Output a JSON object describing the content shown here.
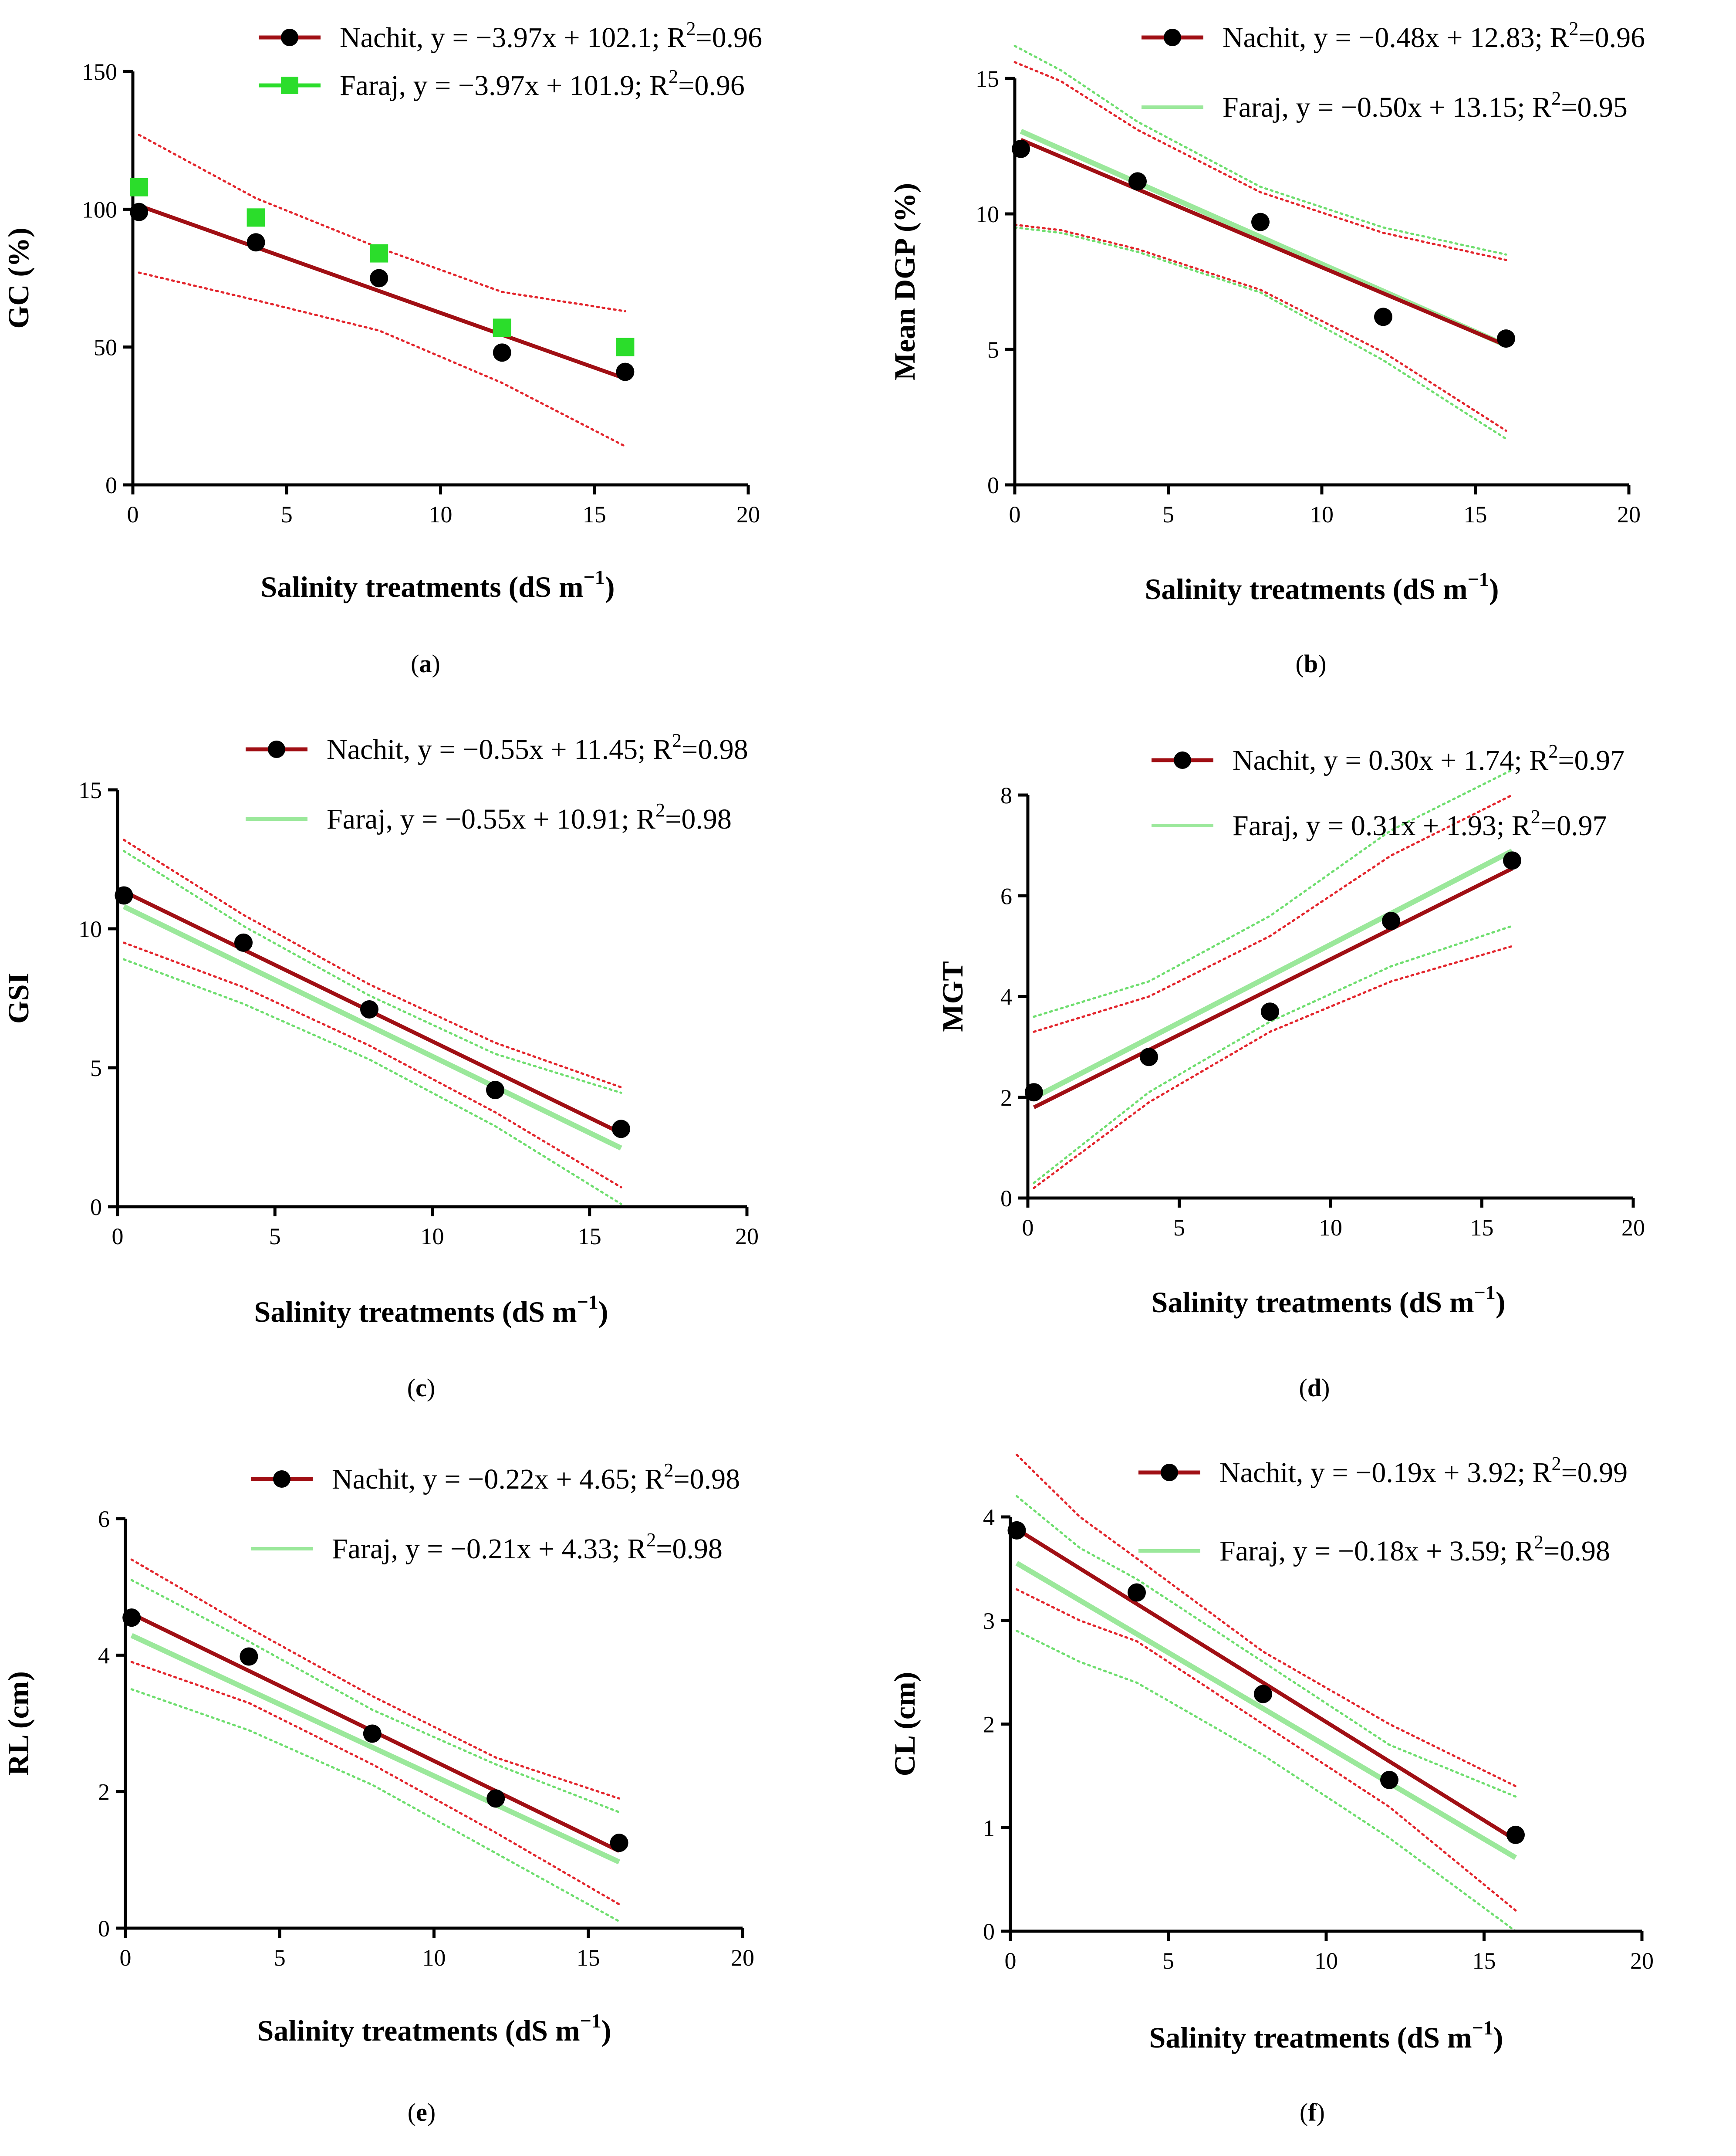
{
  "chart_data": [
    {
      "type": "scatter",
      "panel_label": "a",
      "ylabel": "GC (%)",
      "xlabel_main": "Salinity treatments (dS m",
      "xlabel_sup": "−1",
      "xlabel_close": ")",
      "xlim": [
        0,
        20
      ],
      "ylim": [
        0,
        150
      ],
      "xticks": [
        0,
        5,
        10,
        15,
        20
      ],
      "yticks": [
        0,
        50,
        100,
        150
      ],
      "series": [
        {
          "name": "Nachit",
          "legend_main": "Nachit, y = −3.97x + 102.1; R",
          "legend_sup": "2",
          "legend_tail": "=0.96",
          "x": [
            0.2,
            4,
            8,
            12,
            16
          ],
          "y": [
            99,
            88,
            75,
            48,
            41
          ],
          "fit": {
            "slope": -3.97,
            "intercept": 102.1
          },
          "band": {
            "x": [
              0.2,
              4,
              8,
              12,
              16
            ],
            "lower": [
              77,
              67,
              56,
              37,
              14
            ],
            "upper": [
              127,
              104,
              86,
              70,
              63
            ]
          },
          "color": "#a00f14",
          "marker": "circle",
          "marker_color": "#000000"
        },
        {
          "name": "Faraj",
          "legend_main": "Faraj, y = −3.97x + 101.9; R",
          "legend_sup": "2",
          "legend_tail": "=0.96",
          "x": [
            0.2,
            4,
            8,
            12,
            16
          ],
          "y": [
            108,
            97,
            84,
            57,
            50
          ],
          "color": "#2bdd2b",
          "marker": "square",
          "marker_color": "#2bdd2b"
        }
      ]
    },
    {
      "type": "scatter",
      "panel_label": "b",
      "ylabel": "Mean DGP (%)",
      "xlabel_main": "Salinity treatments (dS m",
      "xlabel_sup": "−1",
      "xlabel_close": ")",
      "xlim": [
        0,
        20
      ],
      "ylim": [
        0,
        15
      ],
      "xticks": [
        0,
        5,
        10,
        15,
        20
      ],
      "yticks": [
        0,
        5,
        10,
        15
      ],
      "series": [
        {
          "name": "Nachit",
          "legend_main": "Nachit, y = −0.48x + 12.83; R",
          "legend_sup": "2",
          "legend_tail": "=0.96",
          "x": [
            0.2,
            4,
            8,
            12,
            16
          ],
          "y": [
            12.4,
            11.2,
            9.7,
            6.2,
            5.4
          ],
          "fit": {
            "slope": -0.48,
            "intercept": 12.83
          },
          "band": {
            "x": [
              0,
              1.5,
              4,
              8,
              12,
              16
            ],
            "lower": [
              9.6,
              9.4,
              8.7,
              7.2,
              4.9,
              2.0
            ],
            "upper": [
              15.6,
              14.9,
              13.1,
              10.8,
              9.3,
              8.3
            ]
          },
          "color": "#a00f14",
          "marker": "circle",
          "marker_color": "#000000"
        },
        {
          "name": "Faraj",
          "legend_main": "Faraj, y = −0.50x + 13.15; R",
          "legend_sup": "2",
          "legend_tail": "=0.95",
          "fit": {
            "slope": -0.5,
            "intercept": 13.15
          },
          "band": {
            "x": [
              0,
              1.5,
              4,
              8,
              12,
              16
            ],
            "lower": [
              9.5,
              9.3,
              8.6,
              7.1,
              4.6,
              1.7
            ],
            "upper": [
              16.2,
              15.3,
              13.4,
              11.0,
              9.5,
              8.5
            ]
          },
          "color": "#9be89b",
          "marker": "none"
        }
      ]
    },
    {
      "type": "scatter",
      "panel_label": "c",
      "ylabel": "GSI",
      "xlabel_main": "Salinity treatments (dS m",
      "xlabel_sup": "−1",
      "xlabel_close": ")",
      "xlim": [
        0,
        20
      ],
      "ylim": [
        0,
        15
      ],
      "xticks": [
        0,
        5,
        10,
        15,
        20
      ],
      "yticks": [
        0,
        5,
        10,
        15
      ],
      "series": [
        {
          "name": "Nachit",
          "legend_main": "Nachit, y = −0.55x + 11.45; R",
          "legend_sup": "2",
          "legend_tail": "=0.98",
          "x": [
            0.2,
            4,
            8,
            12,
            16
          ],
          "y": [
            11.2,
            9.5,
            7.1,
            4.2,
            2.8
          ],
          "fit": {
            "slope": -0.55,
            "intercept": 11.45
          },
          "band": {
            "x": [
              0.2,
              4,
              8,
              12,
              16
            ],
            "lower": [
              9.5,
              7.9,
              5.8,
              3.4,
              0.7
            ],
            "upper": [
              13.2,
              10.5,
              8.0,
              5.9,
              4.3
            ]
          },
          "color": "#a00f14",
          "marker": "circle",
          "marker_color": "#000000"
        },
        {
          "name": "Faraj",
          "legend_main": "Faraj, y = −0.55x + 10.91; R",
          "legend_sup": "2",
          "legend_tail": "=0.98",
          "fit": {
            "slope": -0.55,
            "intercept": 10.91
          },
          "band": {
            "x": [
              0.2,
              4,
              8,
              12,
              16
            ],
            "lower": [
              8.9,
              7.3,
              5.3,
              2.9,
              0.1
            ],
            "upper": [
              12.8,
              10.1,
              7.6,
              5.5,
              4.1
            ]
          },
          "color": "#9be89b",
          "marker": "none"
        }
      ]
    },
    {
      "type": "scatter",
      "panel_label": "d",
      "ylabel": "MGT",
      "xlabel_main": "Salinity treatments (dS m",
      "xlabel_sup": "−1",
      "xlabel_close": ")",
      "xlim": [
        0,
        20
      ],
      "ylim": [
        0,
        8
      ],
      "xticks": [
        0,
        5,
        10,
        15,
        20
      ],
      "yticks": [
        0,
        2,
        4,
        6,
        8
      ],
      "series": [
        {
          "name": "Nachit",
          "legend_main": "Nachit, y = 0.30x + 1.74; R",
          "legend_sup": "2",
          "legend_tail": "=0.97",
          "x": [
            0.2,
            4,
            8,
            12,
            16
          ],
          "y": [
            2.1,
            2.8,
            3.7,
            5.5,
            6.7
          ],
          "fit": {
            "slope": 0.3,
            "intercept": 1.74
          },
          "band": {
            "x": [
              0.2,
              4,
              8,
              12,
              16
            ],
            "lower": [
              0.2,
              1.9,
              3.3,
              4.3,
              5.0
            ],
            "upper": [
              3.3,
              4.0,
              5.2,
              6.8,
              8.0
            ]
          },
          "color": "#a00f14",
          "marker": "circle",
          "marker_color": "#000000"
        },
        {
          "name": "Faraj",
          "legend_main": "Faraj, y = 0.31x + 1.93; R",
          "legend_sup": "2",
          "legend_tail": "=0.97",
          "fit": {
            "slope": 0.31,
            "intercept": 1.93
          },
          "band": {
            "x": [
              0.2,
              4,
              8,
              12,
              16
            ],
            "lower": [
              0.3,
              2.1,
              3.5,
              4.6,
              5.4
            ],
            "upper": [
              3.6,
              4.3,
              5.6,
              7.3,
              8.5
            ]
          },
          "color": "#9be89b",
          "marker": "none"
        }
      ]
    },
    {
      "type": "scatter",
      "panel_label": "e",
      "ylabel": "RL (cm)",
      "xlabel_main": "Salinity treatments (dS m",
      "xlabel_sup": "−1",
      "xlabel_close": ")",
      "xlim": [
        0,
        20
      ],
      "ylim": [
        0,
        6
      ],
      "xticks": [
        0,
        5,
        10,
        15,
        20
      ],
      "yticks": [
        0,
        2,
        4,
        6
      ],
      "series": [
        {
          "name": "Nachit",
          "legend_main": "Nachit, y = −0.22x + 4.65; R",
          "legend_sup": "2",
          "legend_tail": "=0.98",
          "x": [
            0.2,
            4,
            8,
            12,
            16
          ],
          "y": [
            4.55,
            3.98,
            2.85,
            1.9,
            1.25
          ],
          "fit": {
            "slope": -0.22,
            "intercept": 4.65
          },
          "band": {
            "x": [
              0.2,
              4,
              8,
              12,
              16
            ],
            "lower": [
              3.9,
              3.3,
              2.4,
              1.4,
              0.35
            ],
            "upper": [
              5.4,
              4.4,
              3.4,
              2.5,
              1.9
            ]
          },
          "color": "#a00f14",
          "marker": "circle",
          "marker_color": "#000000"
        },
        {
          "name": "Faraj",
          "legend_main": "Faraj, y = −0.21x + 4.33; R",
          "legend_sup": "2",
          "legend_tail": "=0.98",
          "fit": {
            "slope": -0.21,
            "intercept": 4.33
          },
          "band": {
            "x": [
              0.2,
              4,
              8,
              12,
              16
            ],
            "lower": [
              3.5,
              2.9,
              2.1,
              1.1,
              0.1
            ],
            "upper": [
              5.1,
              4.2,
              3.2,
              2.4,
              1.7
            ]
          },
          "color": "#9be89b",
          "marker": "none"
        }
      ]
    },
    {
      "type": "scatter",
      "panel_label": "f",
      "ylabel": "CL (cm)",
      "xlabel_main": "Salinity treatments (dS m",
      "xlabel_sup": "−1",
      "xlabel_close": ")",
      "xlim": [
        0,
        20
      ],
      "ylim": [
        0,
        4
      ],
      "xticks": [
        0,
        5,
        10,
        15,
        20
      ],
      "yticks": [
        0,
        1,
        2,
        3,
        4
      ],
      "series": [
        {
          "name": "Nachit",
          "legend_main": "Nachit, y = −0.19x + 3.92; R",
          "legend_sup": "2",
          "legend_tail": "=0.99",
          "x": [
            0.2,
            4,
            8,
            12,
            16
          ],
          "y": [
            3.87,
            3.27,
            2.29,
            1.46,
            0.93
          ],
          "fit": {
            "slope": -0.19,
            "intercept": 3.92
          },
          "band": {
            "x": [
              0.2,
              2.2,
              4,
              8,
              12,
              16
            ],
            "lower": [
              3.3,
              3.0,
              2.8,
              2.0,
              1.2,
              0.2
            ],
            "upper": [
              4.6,
              4.0,
              3.6,
              2.7,
              2.0,
              1.4
            ]
          },
          "color": "#a00f14",
          "marker": "circle",
          "marker_color": "#000000"
        },
        {
          "name": "Faraj",
          "legend_main": "Faraj, y = −0.18x + 3.59; R",
          "legend_sup": "2",
          "legend_tail": "=0.98",
          "fit": {
            "slope": -0.18,
            "intercept": 3.59
          },
          "band": {
            "x": [
              0.2,
              2.2,
              4,
              8,
              12,
              16
            ],
            "lower": [
              2.9,
              2.6,
              2.4,
              1.7,
              0.9,
              0.0
            ],
            "upper": [
              4.2,
              3.7,
              3.4,
              2.6,
              1.8,
              1.3
            ]
          },
          "color": "#9be89b",
          "marker": "none"
        }
      ]
    }
  ]
}
